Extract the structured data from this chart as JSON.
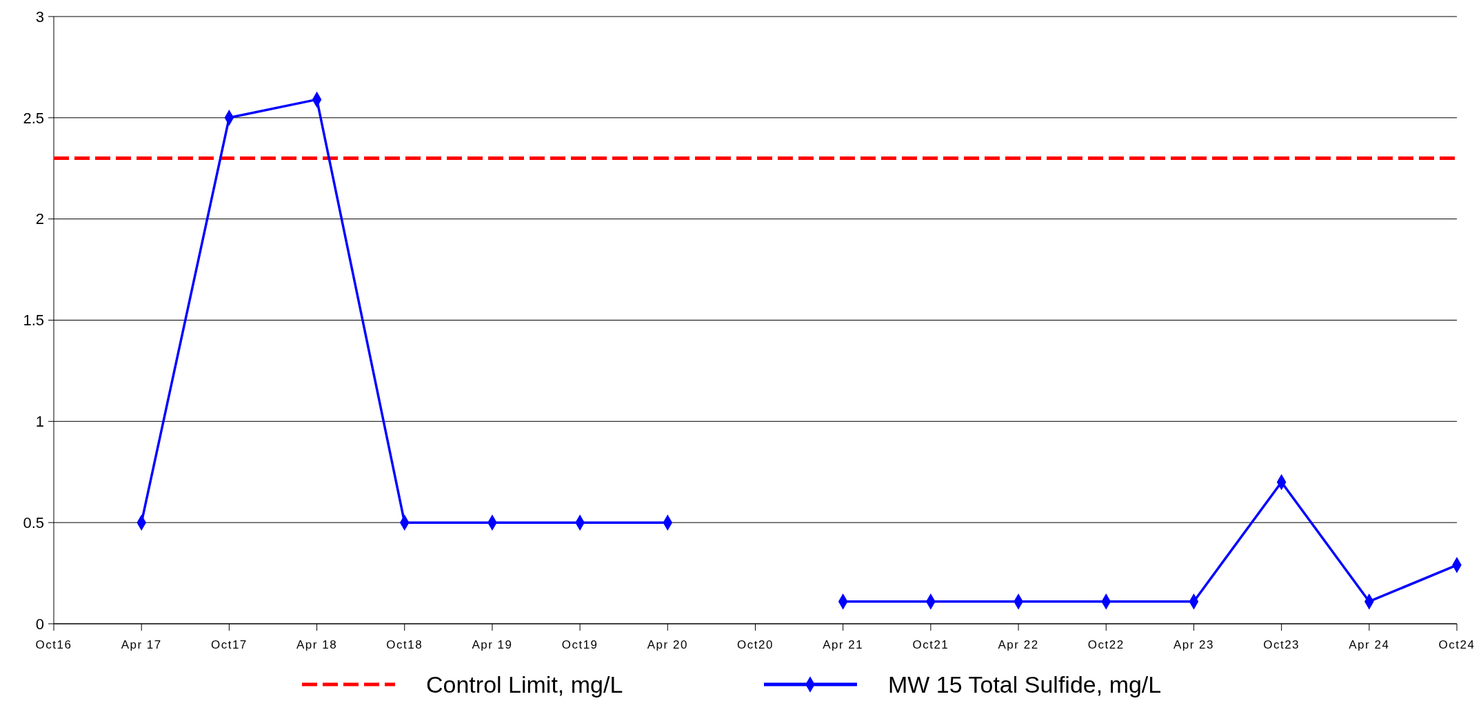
{
  "chart_data": {
    "type": "line",
    "categories": [
      "Oct16",
      "Apr 17",
      "Oct17",
      "Apr 18",
      "Oct18",
      "Apr 19",
      "Oct19",
      "Apr 20",
      "Oct20",
      "Apr 21",
      "Oct21",
      "Apr 22",
      "Oct22",
      "Apr 23",
      "Oct23",
      "Apr 24",
      "Oct24"
    ],
    "series": [
      {
        "name": "Control Limit, mg/L",
        "color": "#ff0000",
        "line_style": "dashed",
        "marker": "none",
        "values": [
          2.3,
          2.3,
          2.3,
          2.3,
          2.3,
          2.3,
          2.3,
          2.3,
          2.3,
          2.3,
          2.3,
          2.3,
          2.3,
          2.3,
          2.3,
          2.3,
          2.3
        ]
      },
      {
        "name": "MW 15 Total Sulfide, mg/L",
        "color": "#0000ff",
        "line_style": "solid",
        "marker": "diamond",
        "values": [
          null,
          0.5,
          2.5,
          2.59,
          0.5,
          0.5,
          0.5,
          0.5,
          null,
          0.11,
          0.11,
          0.11,
          0.11,
          0.11,
          0.7,
          0.11,
          0.29
        ]
      }
    ],
    "ylim": [
      0,
      3
    ],
    "yticks": [
      0,
      0.5,
      1,
      1.5,
      2,
      2.5,
      3
    ],
    "grid": "y",
    "legend": "bottom"
  }
}
